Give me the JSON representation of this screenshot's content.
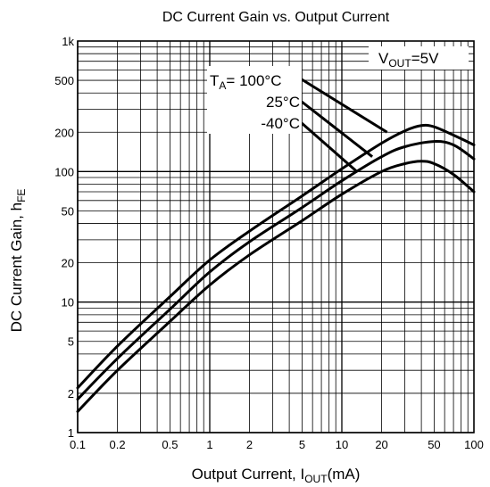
{
  "chart_data": {
    "type": "line",
    "title": "DC Current Gain vs. Output Current",
    "xlabel": {
      "main": "Output Current, I",
      "sub": "OUT",
      "suffix": "(mA)"
    },
    "ylabel": {
      "main": "DC Current Gain, h",
      "sub": "FE"
    },
    "x_scale": "log",
    "y_scale": "log",
    "xlim": [
      0.1,
      100
    ],
    "ylim": [
      1,
      1000
    ],
    "x_tick_labels": [
      {
        "v": 0.1,
        "t": "0.1"
      },
      {
        "v": 0.2,
        "t": "0.2"
      },
      {
        "v": 0.5,
        "t": "0.5"
      },
      {
        "v": 1,
        "t": "1"
      },
      {
        "v": 2,
        "t": "2"
      },
      {
        "v": 5,
        "t": "5"
      },
      {
        "v": 10,
        "t": "10"
      },
      {
        "v": 20,
        "t": "20"
      },
      {
        "v": 50,
        "t": "50"
      },
      {
        "v": 100,
        "t": "100"
      }
    ],
    "y_tick_labels": [
      {
        "v": 1,
        "t": "1"
      },
      {
        "v": 2,
        "t": "2"
      },
      {
        "v": 5,
        "t": "5"
      },
      {
        "v": 10,
        "t": "10"
      },
      {
        "v": 20,
        "t": "20"
      },
      {
        "v": 50,
        "t": "50"
      },
      {
        "v": 100,
        "t": "100"
      },
      {
        "v": 200,
        "t": "200"
      },
      {
        "v": 500,
        "t": "500"
      },
      {
        "v": 1000,
        "t": "1k"
      }
    ],
    "grid": true,
    "condition": {
      "main": "V",
      "sub": "OUT",
      "suffix": "=5V"
    },
    "temp_label_prefix": {
      "main": "T",
      "sub": "A",
      "suffix": "= "
    },
    "series": [
      {
        "name": "100°C",
        "x": [
          0.1,
          0.2,
          0.5,
          1,
          2,
          5,
          10,
          20,
          30,
          40,
          50,
          70,
          100
        ],
        "y": [
          2.2,
          4.6,
          11,
          21,
          35,
          65,
          105,
          165,
          205,
          225,
          220,
          190,
          160
        ]
      },
      {
        "name": "25°C",
        "x": [
          0.1,
          0.2,
          0.5,
          1,
          2,
          5,
          10,
          20,
          30,
          50,
          70,
          100
        ],
        "y": [
          1.8,
          3.7,
          8.8,
          17,
          29,
          53,
          85,
          130,
          155,
          170,
          160,
          125
        ]
      },
      {
        "name": "-40°C",
        "x": [
          0.1,
          0.2,
          0.5,
          1,
          2,
          5,
          10,
          20,
          30,
          40,
          50,
          70,
          100
        ],
        "y": [
          1.45,
          3.0,
          7.1,
          13.5,
          23,
          42,
          67,
          100,
          115,
          120,
          115,
          95,
          70
        ]
      }
    ]
  }
}
